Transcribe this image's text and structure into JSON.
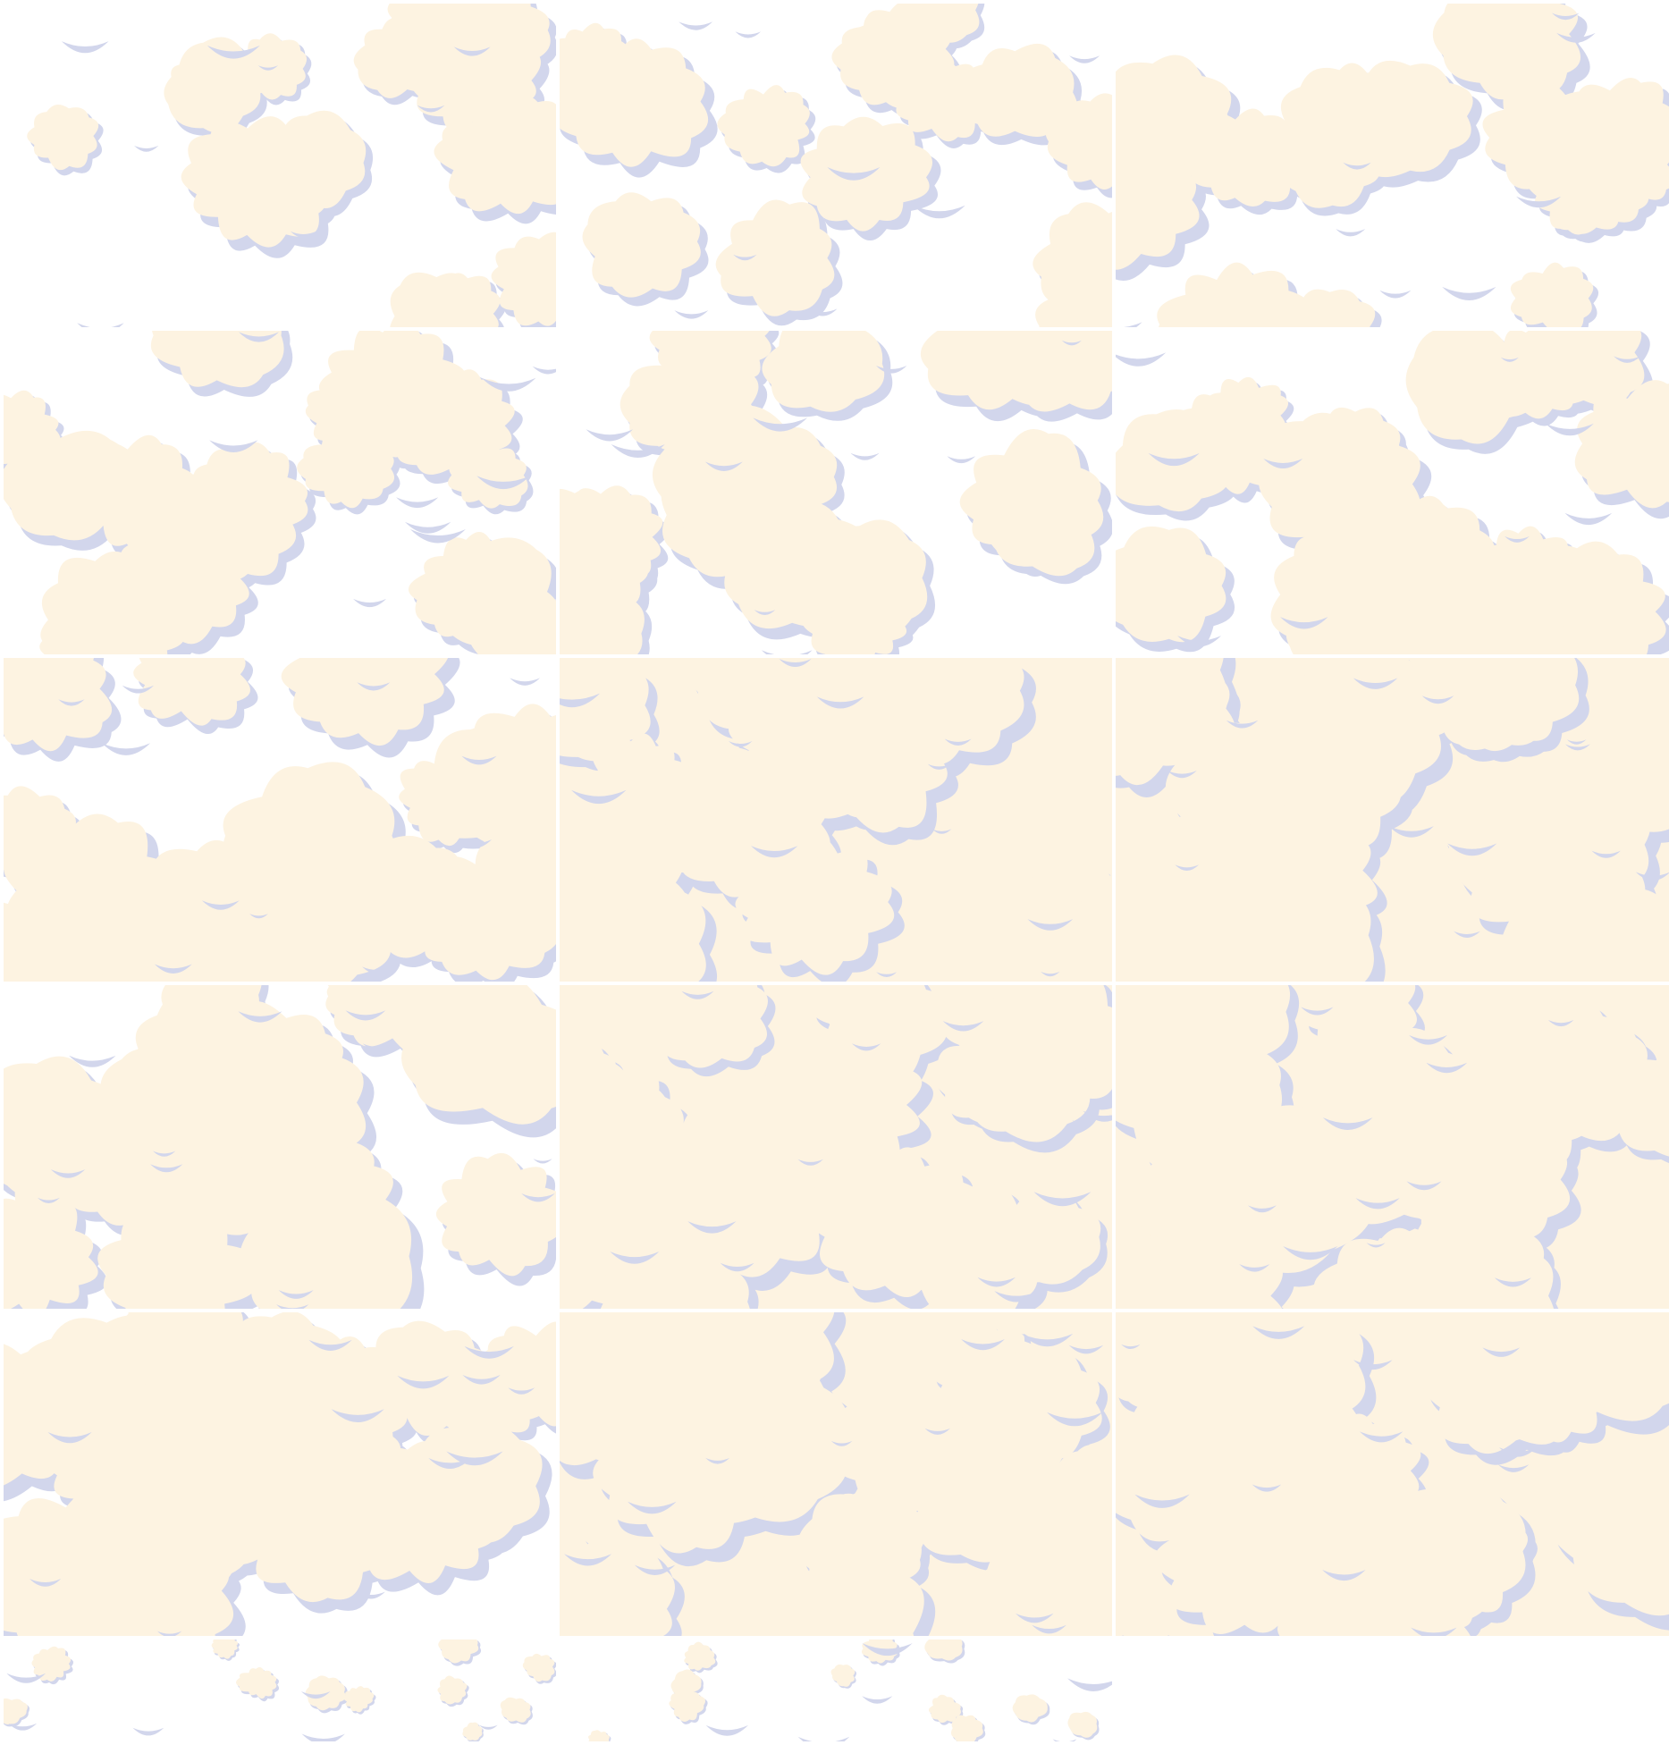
{
  "sheet": {
    "layout": {
      "columns": 3,
      "rows": 5,
      "partial_bottom_row_frames": 2
    },
    "colors": {
      "cream": "#FDF3E1",
      "shadow": "#D2D6EC",
      "background": "#FFFFFF",
      "gutter": "#FFFFFF"
    },
    "frames": [
      {
        "index": 1,
        "coverage": 0.45
      },
      {
        "index": 2,
        "coverage": 0.5
      },
      {
        "index": 3,
        "coverage": 0.55
      },
      {
        "index": 4,
        "coverage": 0.65
      },
      {
        "index": 5,
        "coverage": 0.72
      },
      {
        "index": 6,
        "coverage": 0.78
      },
      {
        "index": 7,
        "coverage": 0.85
      },
      {
        "index": 8,
        "coverage": 1.0
      },
      {
        "index": 9,
        "coverage": 1.0
      },
      {
        "index": 10,
        "coverage": 0.95
      },
      {
        "index": 11,
        "coverage": 1.0
      },
      {
        "index": 12,
        "coverage": 1.0
      },
      {
        "index": 13,
        "coverage": 0.97
      },
      {
        "index": 14,
        "coverage": 1.0
      },
      {
        "index": 15,
        "coverage": 1.0
      },
      {
        "index": 16,
        "coverage": 0.2
      },
      {
        "index": 17,
        "coverage": 0.2
      }
    ]
  }
}
